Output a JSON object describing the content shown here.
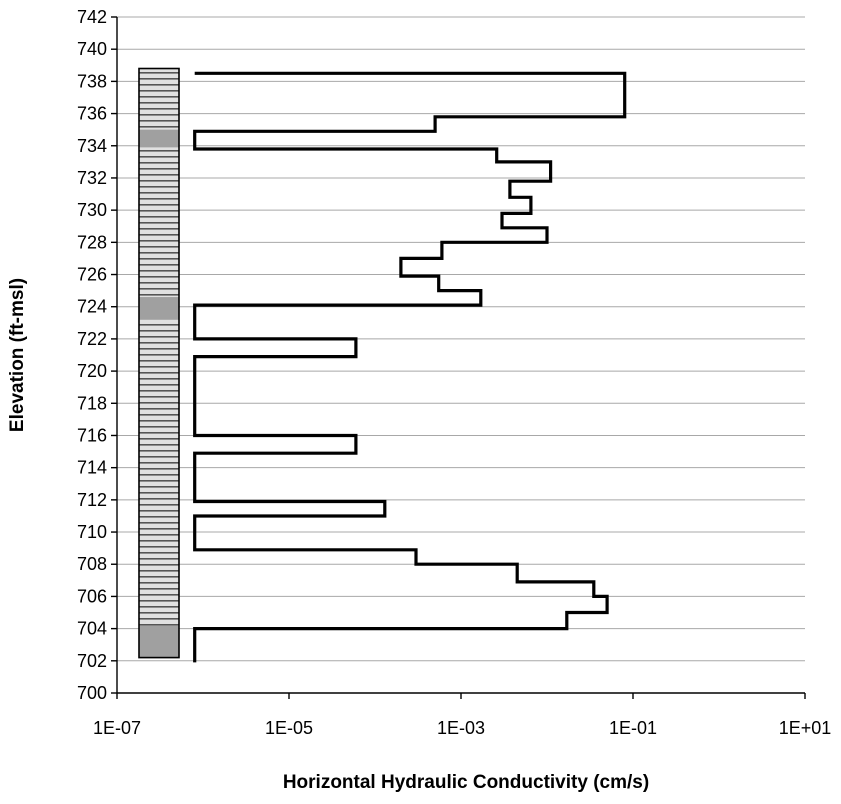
{
  "chart_data": {
    "type": "line",
    "xlabel": "Horizontal Hydraulic Conductivity (cm/s)",
    "ylabel": "Elevation (ft-msl)",
    "xscale": "log",
    "xlim": [
      1e-07,
      10
    ],
    "ylim": [
      700,
      742
    ],
    "x_tick_labels": [
      "1E-07",
      "1E-05",
      "1E-03",
      "1E-01",
      "1E+01"
    ],
    "y_tick_labels": [
      "742",
      "740",
      "738",
      "736",
      "734",
      "732",
      "730",
      "728",
      "726",
      "724",
      "722",
      "720",
      "718",
      "716",
      "714",
      "712",
      "710",
      "708",
      "706",
      "704",
      "702",
      "700"
    ],
    "gridlines": "horizontal",
    "series": [
      {
        "style": "step profile",
        "color": "#000000",
        "points": [
          {
            "x": 8e-07,
            "y": 738.5
          },
          {
            "x": 0.08,
            "y": 738.5
          },
          {
            "x": 0.08,
            "y": 735.8
          },
          {
            "x": 0.0005,
            "y": 735.8
          },
          {
            "x": 0.0005,
            "y": 734.9
          },
          {
            "x": 8e-07,
            "y": 734.9
          },
          {
            "x": 8e-07,
            "y": 733.8
          },
          {
            "x": 0.0026,
            "y": 733.8
          },
          {
            "x": 0.0026,
            "y": 733.0
          },
          {
            "x": 0.011,
            "y": 733.0
          },
          {
            "x": 0.011,
            "y": 731.8
          },
          {
            "x": 0.0037,
            "y": 731.8
          },
          {
            "x": 0.0037,
            "y": 730.8
          },
          {
            "x": 0.0065,
            "y": 730.8
          },
          {
            "x": 0.0065,
            "y": 729.8
          },
          {
            "x": 0.003,
            "y": 729.8
          },
          {
            "x": 0.003,
            "y": 728.9
          },
          {
            "x": 0.01,
            "y": 728.9
          },
          {
            "x": 0.01,
            "y": 728.0
          },
          {
            "x": 0.0006,
            "y": 728.0
          },
          {
            "x": 0.0006,
            "y": 727.0
          },
          {
            "x": 0.0002,
            "y": 727.0
          },
          {
            "x": 0.0002,
            "y": 725.9
          },
          {
            "x": 0.00055,
            "y": 725.9
          },
          {
            "x": 0.00055,
            "y": 725.0
          },
          {
            "x": 0.0017,
            "y": 725.0
          },
          {
            "x": 0.0017,
            "y": 724.1
          },
          {
            "x": 8e-07,
            "y": 724.1
          },
          {
            "x": 8e-07,
            "y": 722.0
          },
          {
            "x": 6e-05,
            "y": 722.0
          },
          {
            "x": 6e-05,
            "y": 720.9
          },
          {
            "x": 8e-07,
            "y": 720.9
          },
          {
            "x": 8e-07,
            "y": 716.0
          },
          {
            "x": 6e-05,
            "y": 716.0
          },
          {
            "x": 6e-05,
            "y": 714.9
          },
          {
            "x": 8e-07,
            "y": 714.9
          },
          {
            "x": 8e-07,
            "y": 711.9
          },
          {
            "x": 0.00013,
            "y": 711.9
          },
          {
            "x": 0.00013,
            "y": 711.0
          },
          {
            "x": 8e-07,
            "y": 711.0
          },
          {
            "x": 8e-07,
            "y": 708.9
          },
          {
            "x": 0.0003,
            "y": 708.9
          },
          {
            "x": 0.0003,
            "y": 708.0
          },
          {
            "x": 0.0045,
            "y": 708.0
          },
          {
            "x": 0.0045,
            "y": 706.9
          },
          {
            "x": 0.035,
            "y": 706.9
          },
          {
            "x": 0.035,
            "y": 706.0
          },
          {
            "x": 0.05,
            "y": 706.0
          },
          {
            "x": 0.05,
            "y": 705.0
          },
          {
            "x": 0.017,
            "y": 705.0
          },
          {
            "x": 0.017,
            "y": 704.0
          },
          {
            "x": 8e-07,
            "y": 704.0
          },
          {
            "x": 8e-07,
            "y": 701.9
          }
        ]
      }
    ],
    "lithology_column": {
      "top": 738.8,
      "bottom": 702.2,
      "base_fill": "horizontal stripes",
      "base_color": "#e0e0e0",
      "stripe_color": "#555555",
      "shaded_bands": [
        {
          "top": 735.0,
          "bottom": 733.9,
          "color": "#a0a0a0"
        },
        {
          "top": 724.6,
          "bottom": 723.2,
          "color": "#a0a0a0"
        },
        {
          "top": 704.2,
          "bottom": 702.2,
          "color": "#a0a0a0"
        }
      ]
    }
  }
}
